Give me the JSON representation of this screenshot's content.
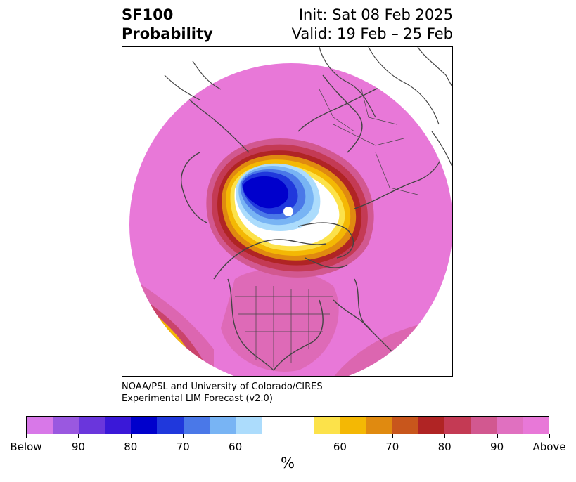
{
  "header": {
    "title_line1": "SF100",
    "title_line2": "Probability",
    "init": "Init: Sat 08 Feb 2025",
    "valid": "Valid: 19 Feb – 25 Feb"
  },
  "credit": {
    "line1": "NOAA/PSL and University of Colorado/CIRES",
    "line2": "Experimental LIM Forecast (v2.0)"
  },
  "colorbar": {
    "colors": [
      "#d878e8",
      "#9a58e0",
      "#6a36dc",
      "#3a18d8",
      "#0000cc",
      "#2038dc",
      "#4a78e8",
      "#78b4f4",
      "#acdcfc",
      "#ffffff",
      "#fce24a",
      "#f4b804",
      "#e08a10",
      "#c8561c",
      "#b02424",
      "#c43a54",
      "#d25890",
      "#e070c0",
      "#e878d8"
    ],
    "tick_labels": [
      "Below",
      "90",
      "80",
      "70",
      "60",
      "60",
      "70",
      "80",
      "90",
      "Above"
    ],
    "unit": "%"
  },
  "map": {
    "dominant_color": "#e878d8",
    "below_core_color": "#0000cc",
    "above_ring_colors": [
      "#fce24a",
      "#f4b804",
      "#e08a10",
      "#b02424",
      "#d25890"
    ]
  }
}
